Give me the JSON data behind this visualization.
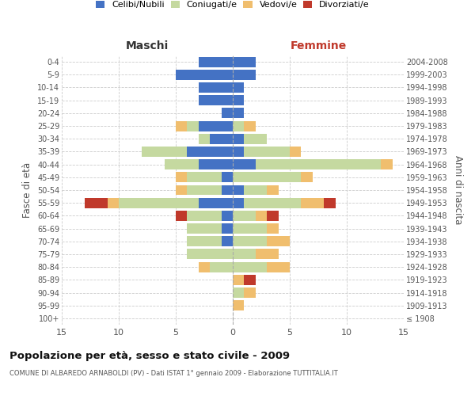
{
  "age_groups": [
    "100+",
    "95-99",
    "90-94",
    "85-89",
    "80-84",
    "75-79",
    "70-74",
    "65-69",
    "60-64",
    "55-59",
    "50-54",
    "45-49",
    "40-44",
    "35-39",
    "30-34",
    "25-29",
    "20-24",
    "15-19",
    "10-14",
    "5-9",
    "0-4"
  ],
  "birth_years": [
    "≤ 1908",
    "1909-1913",
    "1914-1918",
    "1919-1923",
    "1924-1928",
    "1929-1933",
    "1934-1938",
    "1939-1943",
    "1944-1948",
    "1949-1953",
    "1954-1958",
    "1959-1963",
    "1964-1968",
    "1969-1973",
    "1974-1978",
    "1979-1983",
    "1984-1988",
    "1989-1993",
    "1994-1998",
    "1999-2003",
    "2004-2008"
  ],
  "male": {
    "celibi": [
      0,
      0,
      0,
      0,
      0,
      0,
      1,
      1,
      1,
      3,
      1,
      1,
      3,
      4,
      2,
      3,
      1,
      3,
      3,
      5,
      3
    ],
    "coniugati": [
      0,
      0,
      0,
      0,
      2,
      4,
      3,
      3,
      3,
      7,
      3,
      3,
      3,
      4,
      1,
      1,
      0,
      0,
      0,
      0,
      0
    ],
    "vedovi": [
      0,
      0,
      0,
      0,
      1,
      0,
      0,
      0,
      0,
      1,
      1,
      1,
      0,
      0,
      0,
      1,
      0,
      0,
      0,
      0,
      0
    ],
    "divorziati": [
      0,
      0,
      0,
      0,
      0,
      0,
      0,
      0,
      1,
      2,
      0,
      0,
      0,
      0,
      0,
      0,
      0,
      0,
      0,
      0,
      0
    ]
  },
  "female": {
    "nubili": [
      0,
      0,
      0,
      0,
      0,
      0,
      0,
      0,
      0,
      1,
      1,
      0,
      2,
      1,
      1,
      0,
      1,
      1,
      1,
      2,
      2
    ],
    "coniugate": [
      0,
      0,
      1,
      0,
      3,
      2,
      3,
      3,
      2,
      5,
      2,
      6,
      11,
      4,
      2,
      1,
      0,
      0,
      0,
      0,
      0
    ],
    "vedove": [
      0,
      1,
      1,
      1,
      2,
      2,
      2,
      1,
      1,
      2,
      1,
      1,
      1,
      1,
      0,
      1,
      0,
      0,
      0,
      0,
      0
    ],
    "divorziate": [
      0,
      0,
      0,
      1,
      0,
      0,
      0,
      0,
      1,
      1,
      0,
      0,
      0,
      0,
      0,
      0,
      0,
      0,
      0,
      0,
      0
    ]
  },
  "colors": {
    "celibi_nubili": "#4472c4",
    "coniugati": "#c5d9a0",
    "vedovi": "#f0be6e",
    "divorziati": "#c0392b"
  },
  "xlim": 15,
  "title": "Popolazione per età, sesso e stato civile - 2009",
  "subtitle": "COMUNE DI ALBAREDO ARNABOLDI (PV) - Dati ISTAT 1° gennaio 2009 - Elaborazione TUTTITALIA.IT",
  "ylabel_left": "Fasce di età",
  "ylabel_right": "Anni di nascita",
  "header_left": "Maschi",
  "header_right": "Femmine",
  "bg_color": "#ffffff",
  "grid_color": "#cccccc",
  "bar_height": 0.8,
  "legend_labels": [
    "Celibi/Nubili",
    "Coniugati/e",
    "Vedovi/e",
    "Divorziati/e"
  ]
}
